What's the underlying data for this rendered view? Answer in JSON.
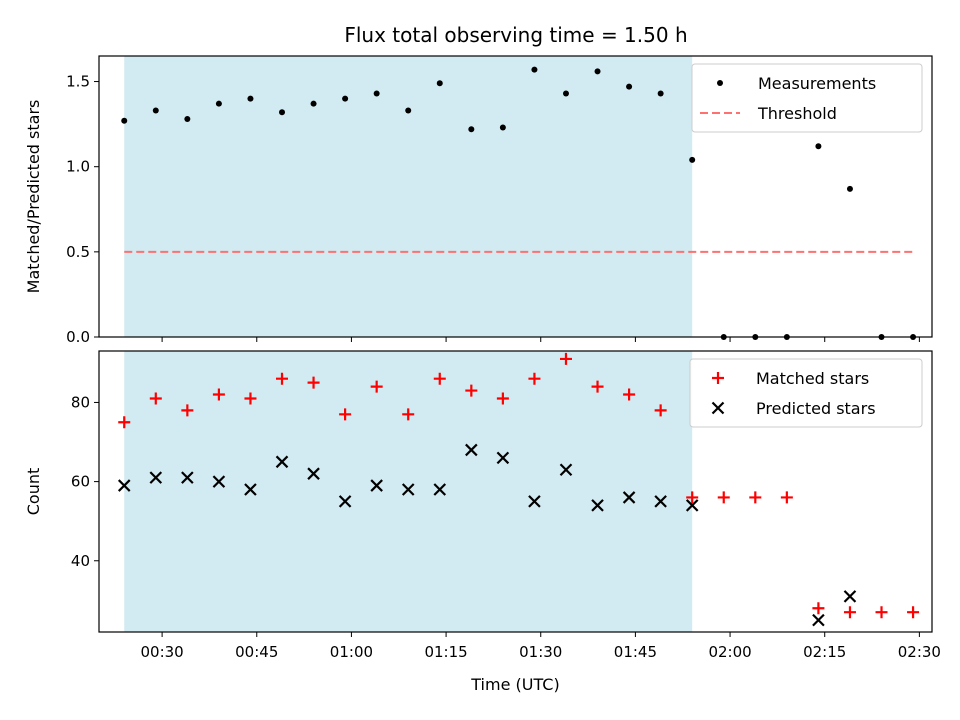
{
  "title": "Flux total observing time = 1.50 h",
  "colors": {
    "shade": "#add8e6",
    "threshold": "#ff7070",
    "matched": "#ff0000",
    "predicted": "#000000",
    "measurements": "#000000"
  },
  "chart_data": [
    {
      "type": "scatter",
      "panel": "top",
      "ylabel": "Matched/Predicted stars",
      "xlabel": "",
      "xlim": [
        "00:20",
        "02:32"
      ],
      "ylim": [
        0,
        1.65
      ],
      "yticks": [
        0.0,
        0.5,
        1.0,
        1.5
      ],
      "ytick_labels": [
        "0.0",
        "0.5",
        "1.0",
        "1.5"
      ],
      "shaded_span": [
        "00:24",
        "01:54"
      ],
      "legend": {
        "placement": "top-right",
        "entries": [
          "Measurements",
          "Threshold"
        ]
      },
      "series": [
        {
          "name": "Measurements",
          "marker": "dot",
          "x": [
            "00:24",
            "00:29",
            "00:34",
            "00:39",
            "00:44",
            "00:49",
            "00:54",
            "00:59",
            "01:04",
            "01:09",
            "01:14",
            "01:19",
            "01:24",
            "01:29",
            "01:34",
            "01:39",
            "01:44",
            "01:49",
            "01:54",
            "01:59",
            "02:04",
            "02:09",
            "02:14",
            "02:19",
            "02:24",
            "02:29"
          ],
          "y": [
            1.27,
            1.33,
            1.28,
            1.37,
            1.4,
            1.32,
            1.37,
            1.4,
            1.43,
            1.33,
            1.49,
            1.22,
            1.23,
            1.57,
            1.43,
            1.56,
            1.47,
            1.43,
            1.04,
            0.0,
            0.0,
            0.0,
            1.12,
            0.87,
            0.0,
            0.0
          ]
        },
        {
          "name": "Threshold",
          "marker": "dashed-line",
          "x": [
            "00:24",
            "02:29"
          ],
          "y": [
            0.5,
            0.5
          ]
        }
      ]
    },
    {
      "type": "scatter",
      "panel": "bottom",
      "ylabel": "Count",
      "xlabel": "Time (UTC)",
      "xlim": [
        "00:20",
        "02:32"
      ],
      "ylim": [
        22,
        93
      ],
      "yticks": [
        40,
        60,
        80
      ],
      "ytick_labels": [
        "40",
        "60",
        "80"
      ],
      "xticks": [
        "00:30",
        "00:45",
        "01:00",
        "01:15",
        "01:30",
        "01:45",
        "02:00",
        "02:15",
        "02:30"
      ],
      "xtick_labels": [
        "00:30",
        "00:45",
        "01:00",
        "01:15",
        "01:30",
        "01:45",
        "02:00",
        "02:15",
        "02:30"
      ],
      "shaded_span": [
        "00:24",
        "01:54"
      ],
      "legend": {
        "placement": "top-right",
        "entries": [
          "Matched stars",
          "Predicted stars"
        ]
      },
      "series": [
        {
          "name": "Matched stars",
          "marker": "plus",
          "x": [
            "00:24",
            "00:29",
            "00:34",
            "00:39",
            "00:44",
            "00:49",
            "00:54",
            "00:59",
            "01:04",
            "01:09",
            "01:14",
            "01:19",
            "01:24",
            "01:29",
            "01:34",
            "01:39",
            "01:44",
            "01:49",
            "01:54",
            "01:59",
            "02:04",
            "02:09",
            "02:14",
            "02:19",
            "02:24",
            "02:29"
          ],
          "y": [
            75,
            81,
            78,
            82,
            81,
            86,
            85,
            77,
            84,
            77,
            86,
            83,
            81,
            86,
            91,
            84,
            82,
            78,
            56,
            56,
            56,
            56,
            28,
            27,
            27,
            27
          ]
        },
        {
          "name": "Predicted stars",
          "marker": "x",
          "x": [
            "00:24",
            "00:29",
            "00:34",
            "00:39",
            "00:44",
            "00:49",
            "00:54",
            "00:59",
            "01:04",
            "01:09",
            "01:14",
            "01:19",
            "01:24",
            "01:29",
            "01:34",
            "01:39",
            "01:44",
            "01:49",
            "01:54",
            "02:14",
            "02:19"
          ],
          "y": [
            59,
            61,
            61,
            60,
            58,
            65,
            62,
            55,
            59,
            58,
            58,
            68,
            66,
            55,
            63,
            54,
            56,
            55,
            54,
            25,
            31
          ]
        }
      ]
    }
  ]
}
